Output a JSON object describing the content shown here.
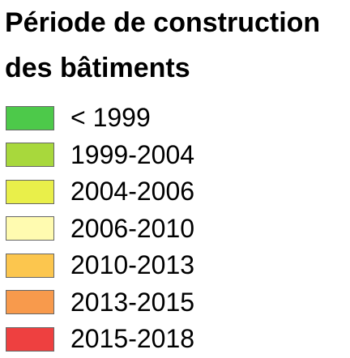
{
  "legend": {
    "title": "Période de construction des bâtiments",
    "items": [
      {
        "label": "< 1999",
        "color": "#4dc94a"
      },
      {
        "label": "1999-2004",
        "color": "#a8d83c"
      },
      {
        "label": "2004-2006",
        "color": "#e9ef4a"
      },
      {
        "label": "2006-2010",
        "color": "#fffbb0"
      },
      {
        "label": "2010-2013",
        "color": "#fcc64e"
      },
      {
        "label": "2013-2015",
        "color": "#f89a4c"
      },
      {
        "label": "2015-2018",
        "color": "#ee4040"
      }
    ]
  }
}
